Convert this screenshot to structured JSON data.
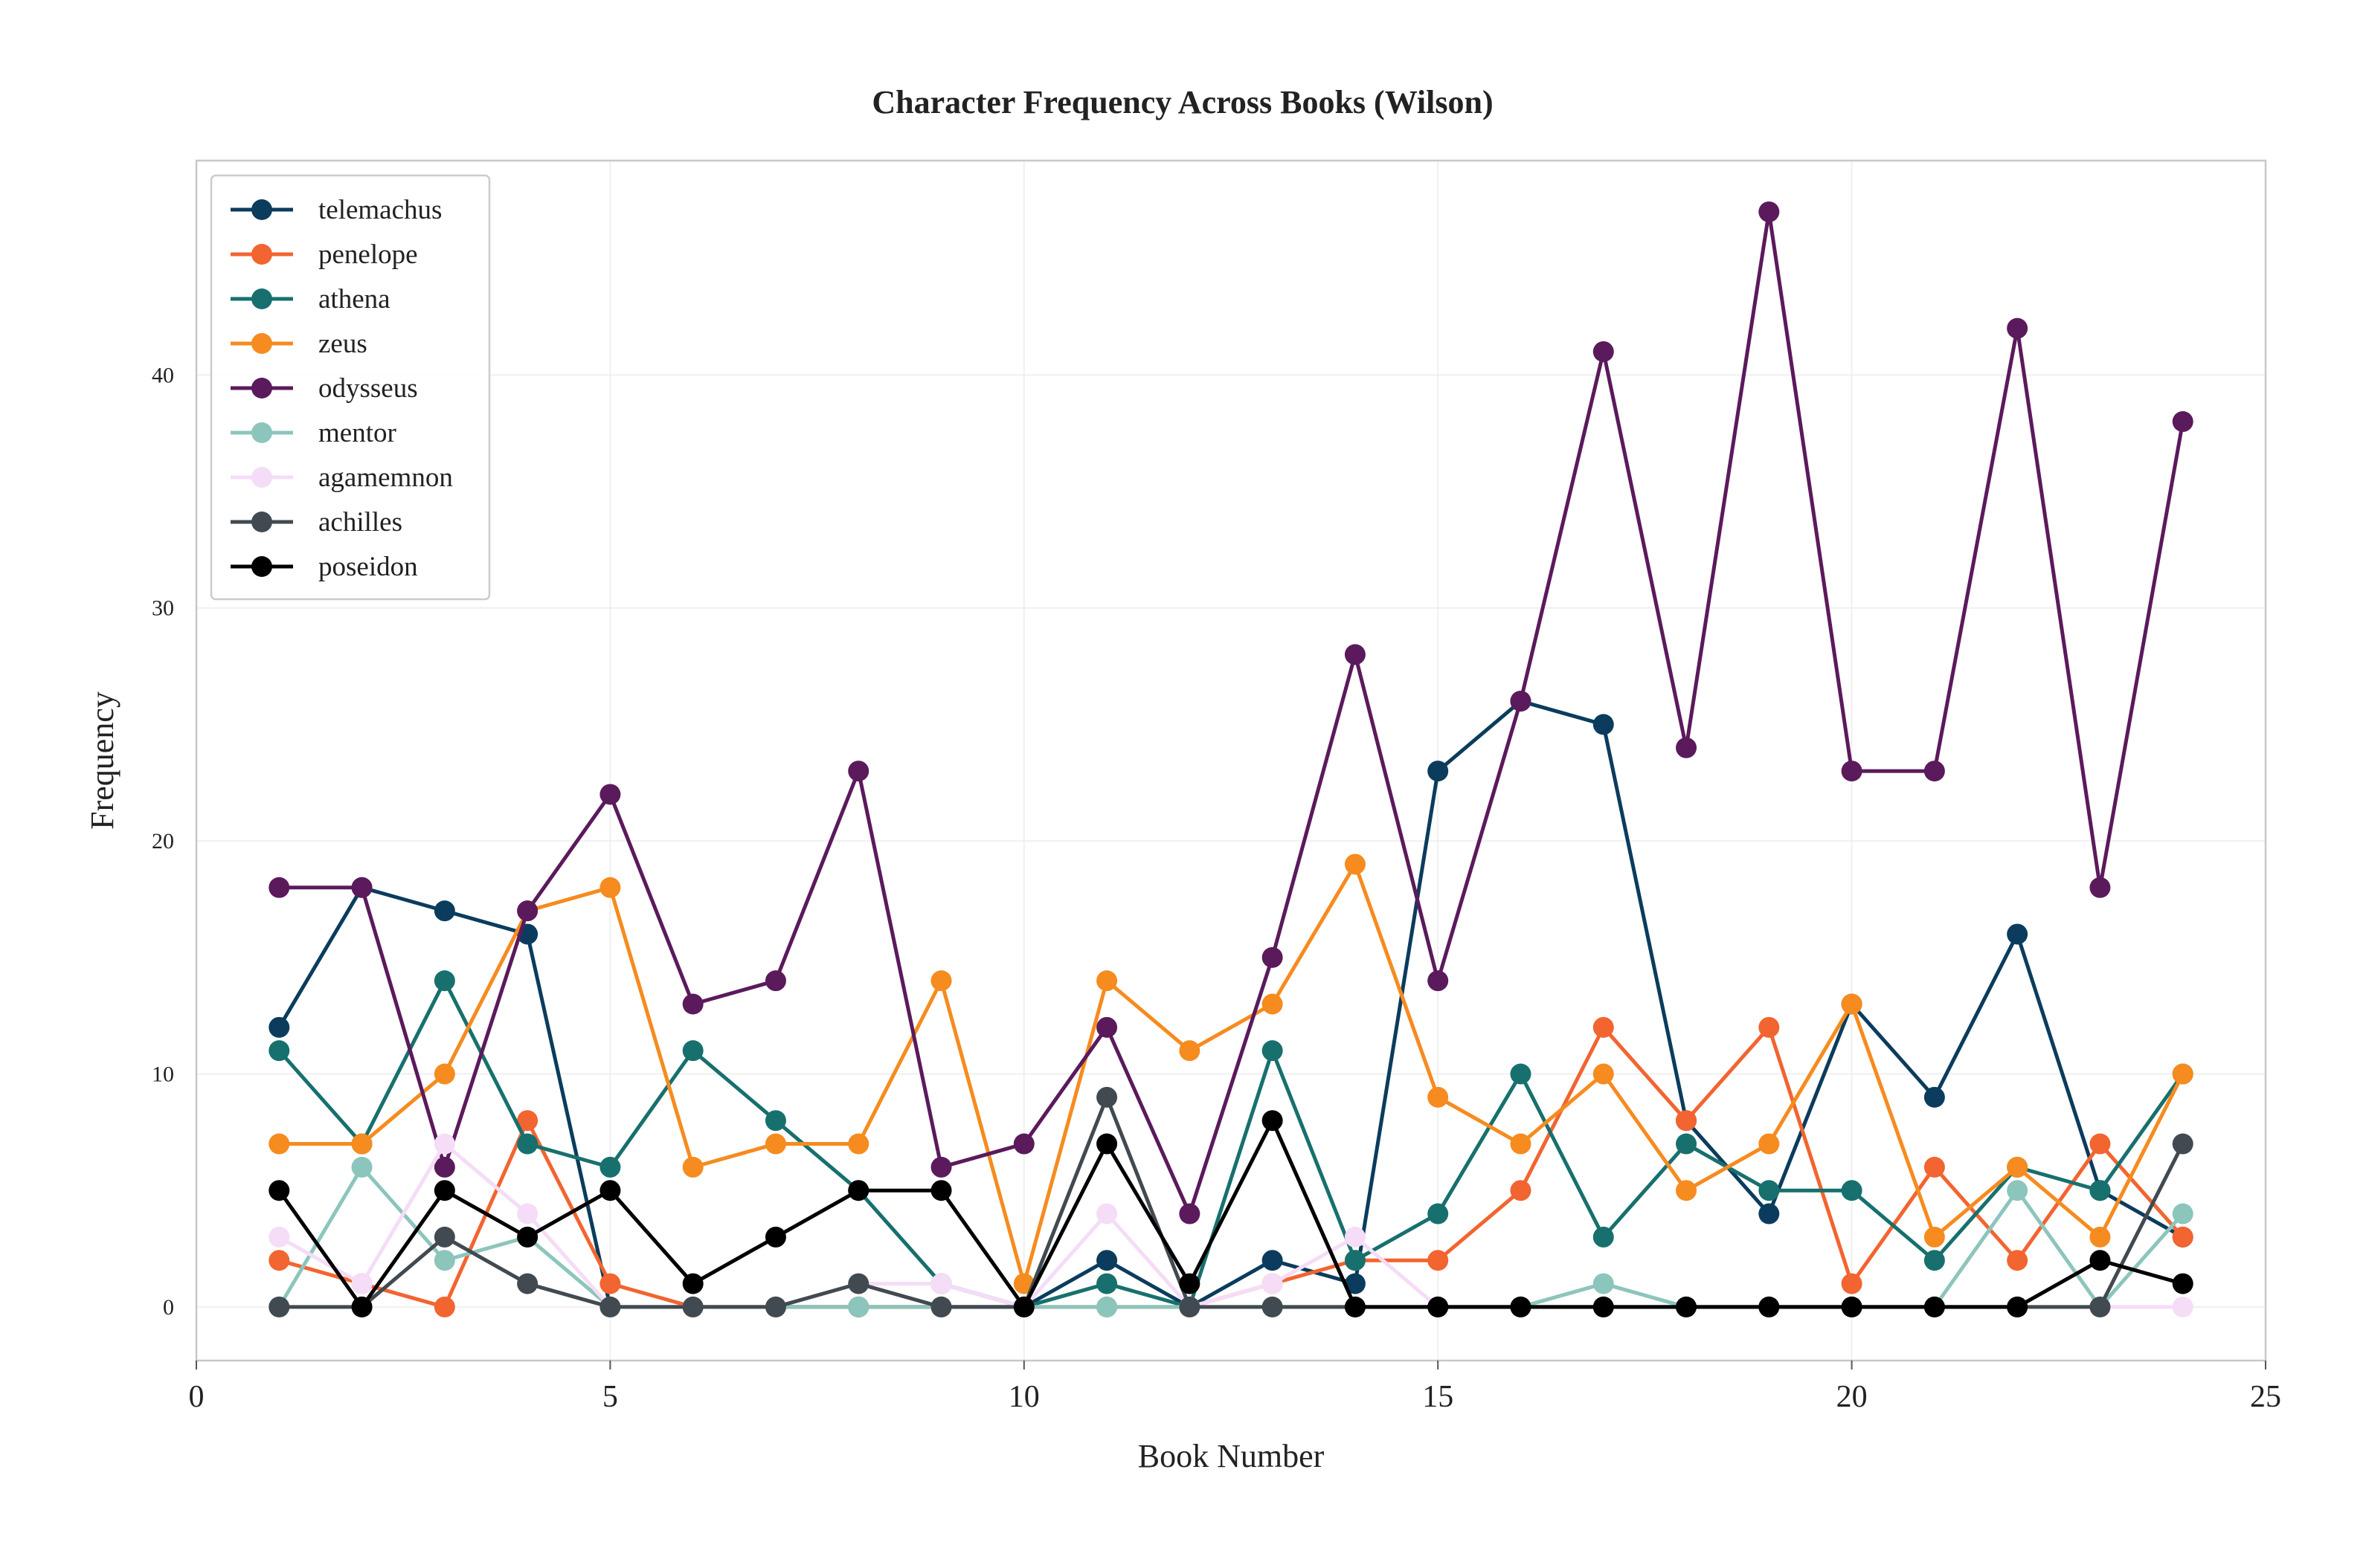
{
  "chart_data": {
    "type": "line",
    "title": "Character Frequency Across Books (Wilson)",
    "xlabel": "Book Number",
    "ylabel": "Frequency",
    "xlim": [
      0,
      25
    ],
    "ylim": [
      -2.3,
      49.2
    ],
    "xticks": [
      0,
      5,
      10,
      15,
      20,
      25
    ],
    "yticks": [
      0,
      10,
      20,
      30,
      40
    ],
    "grid": true,
    "legend_position": "top-left",
    "x": [
      1,
      2,
      3,
      4,
      5,
      6,
      7,
      8,
      9,
      10,
      11,
      12,
      13,
      14,
      15,
      16,
      17,
      18,
      19,
      20,
      21,
      22,
      23,
      24
    ],
    "series": [
      {
        "name": "telemachus",
        "color": "#0b3c5d",
        "values": [
          12,
          18,
          17,
          16,
          0,
          0,
          0,
          0,
          0,
          0,
          2,
          0,
          2,
          1,
          23,
          26,
          25,
          8,
          4,
          13,
          9,
          16,
          5,
          3
        ]
      },
      {
        "name": "penelope",
        "color": "#f26430",
        "values": [
          2,
          1,
          0,
          8,
          1,
          0,
          0,
          0,
          0,
          0,
          0,
          0,
          1,
          2,
          2,
          5,
          12,
          8,
          12,
          1,
          6,
          2,
          7,
          3
        ]
      },
      {
        "name": "athena",
        "color": "#17706e",
        "values": [
          11,
          7,
          14,
          7,
          6,
          11,
          8,
          5,
          1,
          0,
          1,
          0,
          11,
          2,
          4,
          10,
          3,
          7,
          5,
          5,
          2,
          6,
          5,
          10
        ]
      },
      {
        "name": "zeus",
        "color": "#f68b1f",
        "values": [
          7,
          7,
          10,
          17,
          18,
          6,
          7,
          7,
          14,
          1,
          14,
          11,
          13,
          19,
          9,
          7,
          10,
          5,
          7,
          13,
          3,
          6,
          3,
          10
        ]
      },
      {
        "name": "odysseus",
        "color": "#5b1a5c",
        "values": [
          18,
          18,
          6,
          17,
          22,
          13,
          14,
          23,
          6,
          7,
          12,
          4,
          15,
          28,
          14,
          26,
          41,
          24,
          47,
          23,
          23,
          42,
          18,
          38
        ]
      },
      {
        "name": "mentor",
        "color": "#8cc5bc",
        "values": [
          0,
          6,
          2,
          3,
          0,
          0,
          0,
          0,
          0,
          0,
          0,
          0,
          0,
          0,
          0,
          0,
          1,
          0,
          0,
          0,
          0,
          5,
          0,
          4
        ]
      },
      {
        "name": "agamemnon",
        "color": "#f5dcf7",
        "values": [
          3,
          1,
          7,
          4,
          0,
          0,
          0,
          1,
          1,
          0,
          4,
          0,
          1,
          3,
          0,
          0,
          0,
          0,
          0,
          0,
          0,
          0,
          0,
          0
        ]
      },
      {
        "name": "achilles",
        "color": "#414a51",
        "values": [
          0,
          0,
          3,
          1,
          0,
          0,
          0,
          1,
          0,
          0,
          9,
          0,
          0,
          0,
          0,
          0,
          0,
          0,
          0,
          0,
          0,
          0,
          0,
          7
        ]
      },
      {
        "name": "poseidon",
        "color": "#000000",
        "values": [
          5,
          0,
          5,
          3,
          5,
          1,
          3,
          5,
          5,
          0,
          7,
          1,
          8,
          0,
          0,
          0,
          0,
          0,
          0,
          0,
          0,
          0,
          2,
          1
        ]
      }
    ]
  }
}
